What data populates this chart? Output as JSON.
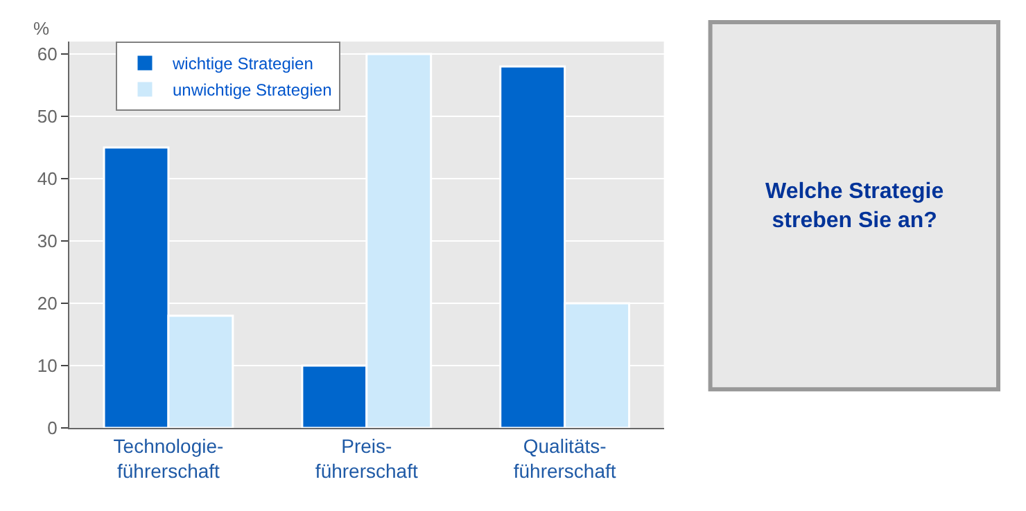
{
  "chart_data": {
    "type": "bar",
    "ylabel": "%",
    "categories": [
      "Technologie-\nführerschaft",
      "Preis-\nführerschaft",
      "Qualitäts-\nführerschaft"
    ],
    "series": [
      {
        "name": "wichtige Strategien",
        "color": "#0066cc",
        "values": [
          45,
          10,
          58
        ]
      },
      {
        "name": "unwichtige Strategien",
        "color": "#cce9fb",
        "values": [
          18,
          60,
          20
        ]
      }
    ],
    "ylim": [
      0,
      62
    ],
    "yticks": [
      0,
      10,
      20,
      30,
      40,
      50,
      60
    ],
    "grid": "y",
    "legend": "top left",
    "annotations": [
      "Welche Strategie\nstreben Sie an?"
    ]
  }
}
